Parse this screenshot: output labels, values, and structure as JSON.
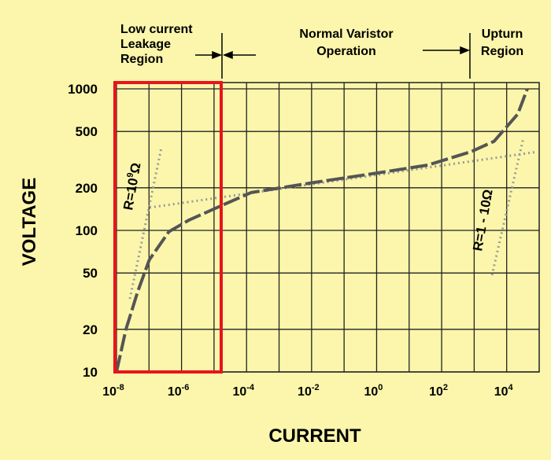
{
  "chart_data": {
    "type": "line",
    "x_label": "CURRENT",
    "y_label": "VOLTAGE",
    "xlog": true,
    "ylog": true,
    "grid": true,
    "xlim": [
      1e-08,
      100000.0
    ],
    "ylim": [
      10,
      1000
    ],
    "xticks": [
      {
        "value": 1e-08,
        "label": "10",
        "exponent": "-8"
      },
      {
        "value": 1e-06,
        "label": "10",
        "exponent": "-6"
      },
      {
        "value": 0.0001,
        "label": "10",
        "exponent": "-4"
      },
      {
        "value": 0.01,
        "label": "10",
        "exponent": "-2"
      },
      {
        "value": 1,
        "label": "10",
        "exponent": "0"
      },
      {
        "value": 100,
        "label": "10",
        "exponent": "2"
      },
      {
        "value": 10000,
        "label": "10",
        "exponent": "4"
      }
    ],
    "xminor": [
      1e-07,
      1e-05,
      0.001,
      0.1,
      10,
      1000
    ],
    "yticks": [
      10,
      20,
      50,
      100,
      200,
      500,
      1000
    ],
    "series": [
      {
        "color": "#555555",
        "x": [
          1e-08,
          1.95e-08,
          4.5e-08,
          1.02e-07,
          4.1e-07,
          1.66e-06,
          1.5e-05,
          0.000138,
          0.0117,
          1,
          37,
          780,
          4100,
          22000,
          43000
        ],
        "values": [
          10,
          20,
          37,
          62,
          98,
          118,
          148,
          185,
          218,
          254,
          289,
          359,
          426,
          664,
          1000
        ]
      }
    ],
    "annotations": {
      "leakage": [
        "Low current",
        "Leakage",
        "Region"
      ],
      "normal": [
        "Normal Varistor",
        "Operation"
      ],
      "upturn": [
        "Upturn",
        "Region"
      ],
      "r_low": "R=10",
      "r_low_exp": "9",
      "r_low_unit": "Ω",
      "r_high": "R=1 - 10Ω"
    }
  }
}
